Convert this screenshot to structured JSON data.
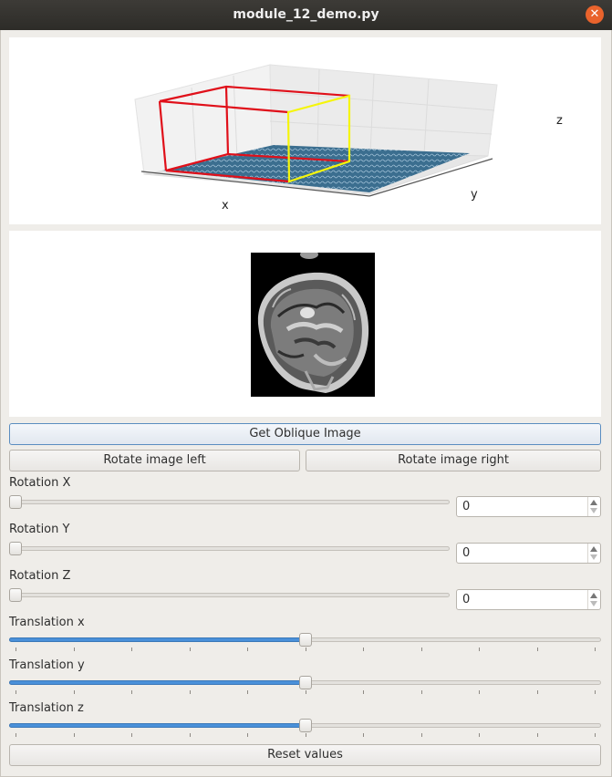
{
  "window": {
    "title": "module_12_demo.py",
    "close_icon": "close-icon"
  },
  "plot": {
    "xlabel": "x",
    "ylabel": "y",
    "zlabel": "z",
    "colors": {
      "box_main": "#e0101a",
      "box_face": "#f5f50a",
      "surface": "#3b6e8f"
    }
  },
  "image": {
    "description_icon": "brain-mri-slice"
  },
  "buttons": {
    "get_oblique": "Get Oblique Image",
    "rotate_left": "Rotate image left",
    "rotate_right": "Rotate image right",
    "reset": "Reset values"
  },
  "controls": {
    "rotation_x": {
      "label": "Rotation X",
      "value": "0",
      "fraction": 0.0
    },
    "rotation_y": {
      "label": "Rotation Y",
      "value": "0",
      "fraction": 0.0
    },
    "rotation_z": {
      "label": "Rotation Z",
      "value": "0",
      "fraction": 0.0
    },
    "translation_x": {
      "label": "Translation x",
      "fraction": 0.5
    },
    "translation_y": {
      "label": "Translation y",
      "fraction": 0.5
    },
    "translation_z": {
      "label": "Translation z",
      "fraction": 0.5
    }
  },
  "accent_color": "#4a90d9"
}
